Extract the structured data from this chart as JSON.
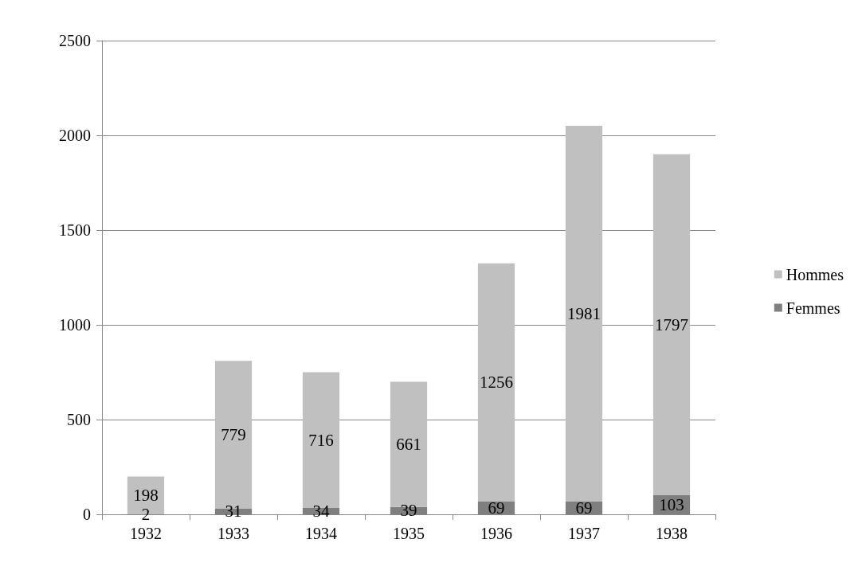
{
  "chart_data": {
    "type": "bar",
    "stacked": true,
    "categories": [
      "1932",
      "1933",
      "1934",
      "1935",
      "1936",
      "1937",
      "1938"
    ],
    "series": [
      {
        "name": "Femmes",
        "color": "#7f7f7f",
        "values": [
          2,
          31,
          34,
          39,
          69,
          69,
          103
        ]
      },
      {
        "name": "Hommes",
        "color": "#c0c0c0",
        "values": [
          198,
          779,
          716,
          661,
          1256,
          1981,
          1797
        ]
      }
    ],
    "ylim": [
      0,
      2500
    ],
    "yticks": [
      0,
      500,
      1000,
      1500,
      2000,
      2500
    ],
    "grid": "y",
    "legend": "right",
    "data_labels": true
  }
}
